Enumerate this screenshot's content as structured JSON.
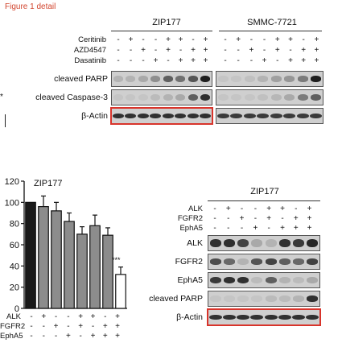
{
  "figure_label": "Figure 1 detail",
  "top_panel": {
    "groups": [
      "ZIP177",
      "SMMC-7721"
    ],
    "treatment_labels": [
      "Ceritinib",
      "AZD4547",
      "Dasatinib"
    ],
    "conditions": [
      [
        "-",
        "+",
        "-",
        "-",
        "+",
        "+",
        "-",
        "+"
      ],
      [
        "-",
        "-",
        "+",
        "-",
        "+",
        "-",
        "+",
        "+"
      ],
      [
        "-",
        "-",
        "-",
        "+",
        "-",
        "+",
        "+",
        "+"
      ]
    ],
    "blot_labels": [
      "cleaved PARP",
      "cleaved Caspase-3",
      "β-Actin"
    ],
    "stray_marks": [
      "*",
      "("
    ]
  },
  "bar_chart": {
    "title": "ZIP177",
    "significance": "***",
    "condition_labels": [
      "ALK",
      "FGFR2",
      "EphA5"
    ],
    "chart_data": {
      "type": "bar",
      "title": "ZIP177",
      "categories": [
        "1",
        "2",
        "3",
        "4",
        "5",
        "6",
        "7",
        "8"
      ],
      "series": [
        {
          "values": [
            100,
            96,
            92,
            82,
            70,
            78,
            69,
            32
          ],
          "errors": [
            0,
            10,
            8,
            8,
            7,
            10,
            7,
            7
          ]
        }
      ],
      "bar_colors": [
        "#1a1a1a",
        "#8c8c8c",
        "#8c8c8c",
        "#8c8c8c",
        "#8c8c8c",
        "#8c8c8c",
        "#8c8c8c",
        "#ffffff"
      ],
      "ylim": [
        0,
        120
      ],
      "yticks": [
        "0",
        "20",
        "40",
        "60",
        "80",
        "100",
        "120"
      ],
      "conditions": [
        [
          "-",
          "+",
          "-",
          "-",
          "+",
          "+",
          "-",
          "+"
        ],
        [
          "-",
          "-",
          "+",
          "-",
          "+",
          "-",
          "+",
          "+"
        ],
        [
          "-",
          "-",
          "-",
          "+",
          "-",
          "+",
          "+",
          "+"
        ]
      ]
    }
  },
  "bottom_right": {
    "title": "ZIP177",
    "condition_labels": [
      "ALK",
      "FGFR2",
      "EphA5"
    ],
    "conditions": [
      [
        "-",
        "+",
        "-",
        "-",
        "+",
        "+",
        "-",
        "+"
      ],
      [
        "-",
        "-",
        "+",
        "-",
        "+",
        "-",
        "+",
        "+"
      ],
      [
        "-",
        "-",
        "-",
        "+",
        "-",
        "+",
        "+",
        "+"
      ]
    ],
    "blot_labels": [
      "ALK",
      "FGFR2",
      "EphA5",
      "cleaved PARP",
      "β-Actin"
    ]
  },
  "colors": {
    "accent_red": "#d8342b",
    "label_red": "#d2452e"
  }
}
